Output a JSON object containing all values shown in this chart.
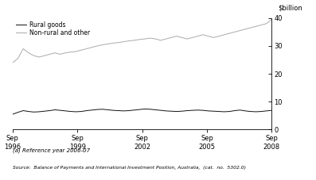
{
  "title": "",
  "ylabel_right": "$billion",
  "footnote1": "(a) Reference year 2006-07",
  "footnote2": "Source:  Balance of Payments and International Investment Position, Australia,  (cat.  no.  5302.0)",
  "legend_labels": [
    "Rural goods",
    "Non-rural and other"
  ],
  "line_colors": [
    "#111111",
    "#aaaaaa"
  ],
  "ylim": [
    0,
    40
  ],
  "yticks": [
    0,
    10,
    20,
    30,
    40
  ],
  "xtick_labels": [
    "Sep\n1996",
    "Sep\n1999",
    "Sep\n2002",
    "Sep\n2005",
    "Sep\n2008"
  ],
  "background_color": "#ffffff",
  "rural_goods": [
    5.5,
    6.2,
    6.8,
    6.5,
    6.3,
    6.4,
    6.6,
    6.8,
    7.1,
    6.9,
    6.7,
    6.5,
    6.4,
    6.5,
    6.8,
    7.0,
    7.2,
    7.3,
    7.1,
    6.9,
    6.8,
    6.7,
    6.8,
    7.0,
    7.2,
    7.4,
    7.3,
    7.1,
    6.9,
    6.7,
    6.6,
    6.5,
    6.6,
    6.8,
    6.9,
    7.0,
    6.9,
    6.7,
    6.6,
    6.5,
    6.4,
    6.5,
    6.8,
    7.0,
    6.7,
    6.5,
    6.4,
    6.5,
    6.7,
    6.9
  ],
  "non_rural": [
    24.0,
    25.5,
    29.0,
    27.5,
    26.5,
    26.0,
    26.5,
    27.0,
    27.5,
    27.0,
    27.5,
    27.8,
    28.0,
    28.5,
    29.0,
    29.5,
    30.0,
    30.4,
    30.7,
    31.0,
    31.2,
    31.5,
    31.8,
    32.0,
    32.3,
    32.5,
    32.8,
    32.5,
    32.0,
    32.5,
    33.0,
    33.5,
    33.0,
    32.5,
    33.0,
    33.5,
    34.0,
    33.5,
    33.0,
    33.5,
    34.0,
    34.5,
    35.0,
    35.5,
    36.0,
    36.5,
    37.0,
    37.5,
    38.0,
    39.5
  ]
}
